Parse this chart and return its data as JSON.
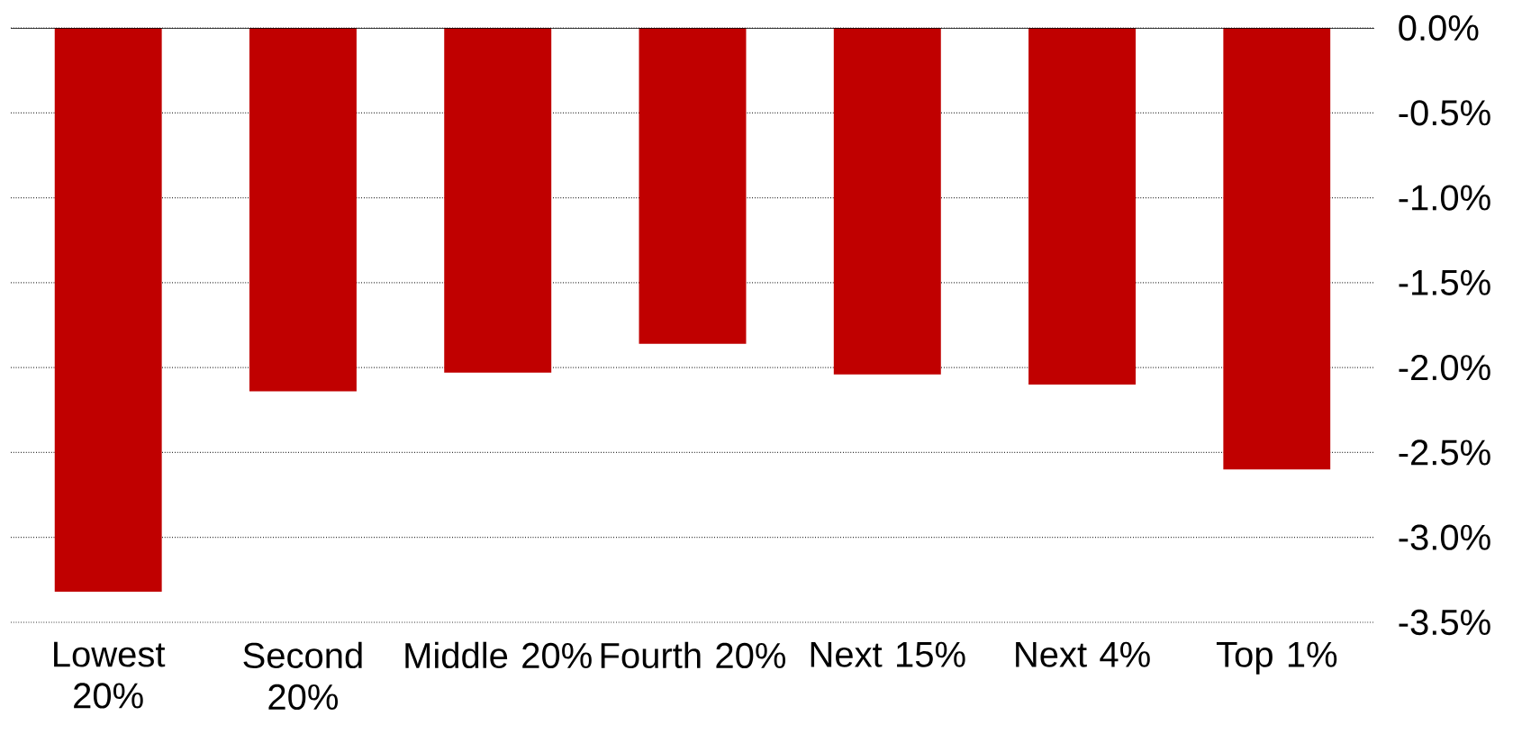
{
  "chart_data": {
    "type": "bar",
    "categories": [
      "Lowest 20%",
      "Second 20%",
      "Middle 20%",
      "Fourth 20%",
      "Next 15%",
      "Next 4%",
      "Top 1%"
    ],
    "values": [
      -3.32,
      -2.14,
      -2.03,
      -1.86,
      -2.04,
      -2.1,
      -2.6
    ],
    "color": "#c00000",
    "ylim": [
      -3.5,
      0
    ],
    "yticks": [
      {
        "value": 0,
        "label": "0.0%"
      },
      {
        "value": -0.5,
        "label": "-0.5%"
      },
      {
        "value": -1,
        "label": "-1.0%"
      },
      {
        "value": -1.5,
        "label": "-1.5%"
      },
      {
        "value": -2,
        "label": "-2.0%"
      },
      {
        "value": -2.5,
        "label": "-2.5%"
      },
      {
        "value": -3,
        "label": "-3.0%"
      },
      {
        "value": -3.5,
        "label": "-3.5%"
      }
    ],
    "grid": "y"
  }
}
